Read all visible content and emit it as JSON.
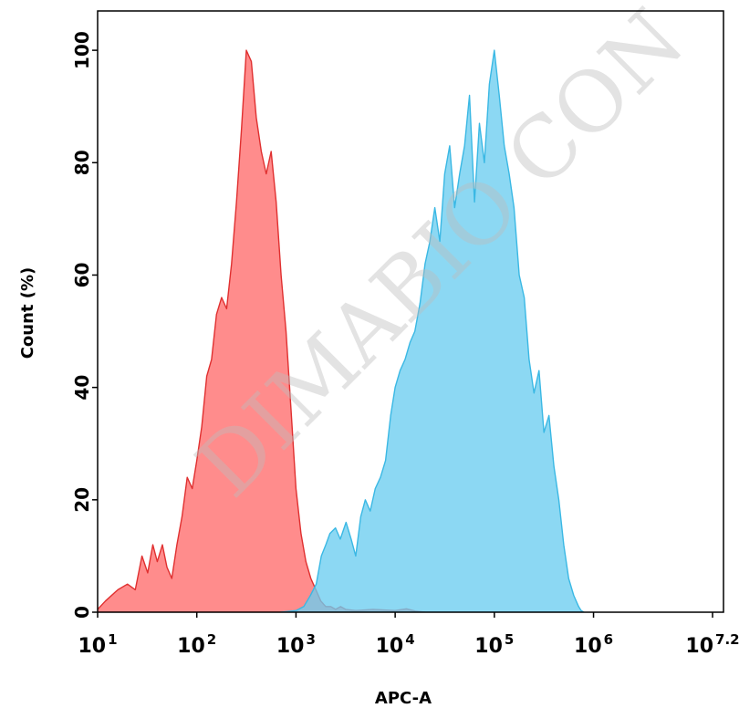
{
  "chart_data": {
    "type": "area",
    "xlabel": "APC-A",
    "ylabel": "Count  (%)",
    "xscale": "log10",
    "xlim": [
      10,
      15848931.9
    ],
    "ylim": [
      0,
      107
    ],
    "xticks": [
      {
        "base": "10",
        "exp": "1",
        "value": 10
      },
      {
        "base": "10",
        "exp": "2",
        "value": 100
      },
      {
        "base": "10",
        "exp": "3",
        "value": 1000
      },
      {
        "base": "10",
        "exp": "4",
        "value": 10000
      },
      {
        "base": "10",
        "exp": "5",
        "value": 100000
      },
      {
        "base": "10",
        "exp": "6",
        "value": 1000000
      },
      {
        "base": "10",
        "exp": "7.2",
        "value": 15848931.9
      }
    ],
    "yticks": [
      "0",
      "20",
      "40",
      "60",
      "80",
      "100"
    ],
    "grid": false,
    "legend": "none",
    "watermark": "DIMABIO CON",
    "series": [
      {
        "color": "#ff6b6b",
        "stroke": "#e03030",
        "x": [
          8.7,
          10,
          12,
          16,
          20,
          24,
          28,
          32,
          36,
          40,
          45,
          50,
          56,
          63,
          71,
          80,
          90,
          100,
          112,
          126,
          141,
          158,
          178,
          200,
          224,
          251,
          282,
          316,
          355,
          398,
          447,
          501,
          562,
          631,
          708,
          794,
          891,
          1000,
          1122,
          1259,
          1413,
          1585,
          1778,
          1995,
          2239,
          2512,
          2818,
          3162,
          4000,
          6000,
          10000,
          13000,
          16000,
          20000
        ],
        "y": [
          0,
          0.5,
          2,
          4,
          5,
          4,
          10,
          7,
          12,
          9,
          12,
          8,
          6,
          12,
          17,
          24,
          22,
          27,
          33,
          42,
          45,
          53,
          56,
          54,
          62,
          73,
          86,
          100,
          98,
          88,
          82,
          78,
          82,
          73,
          60,
          50,
          36,
          22,
          14,
          9,
          6,
          4,
          2,
          1,
          1,
          0.5,
          1,
          0.5,
          0.3,
          0.5,
          0.3,
          0.6,
          0.2,
          0
        ]
      },
      {
        "color": "#6ccdef",
        "stroke": "#3ab8e4",
        "x": [
          700,
          1000,
          1200,
          1400,
          1600,
          1800,
          2000,
          2200,
          2500,
          2800,
          3200,
          3600,
          4000,
          4500,
          5000,
          5600,
          6300,
          7100,
          8000,
          9000,
          10000,
          11200,
          12600,
          14100,
          15800,
          17800,
          20000,
          22400,
          25100,
          28200,
          31600,
          35500,
          39800,
          44700,
          50100,
          56200,
          63100,
          70800,
          79400,
          89100,
          100000,
          112000,
          126000,
          141000,
          158000,
          178000,
          200000,
          224000,
          251000,
          282000,
          316000,
          355000,
          398000,
          447000,
          501000,
          562000,
          631000,
          708000,
          750000,
          800000
        ],
        "y": [
          0,
          0.3,
          1,
          3,
          5,
          10,
          12,
          14,
          15,
          13,
          16,
          13,
          10,
          17,
          20,
          18,
          22,
          24,
          27,
          35,
          40,
          43,
          45,
          48,
          50,
          55,
          62,
          66,
          72,
          66,
          78,
          83,
          72,
          78,
          83,
          92,
          73,
          87,
          80,
          94,
          100,
          92,
          83,
          78,
          72,
          60,
          56,
          45,
          39,
          43,
          32,
          35,
          26,
          20,
          12,
          6,
          3,
          1,
          0.3,
          0
        ]
      }
    ]
  }
}
